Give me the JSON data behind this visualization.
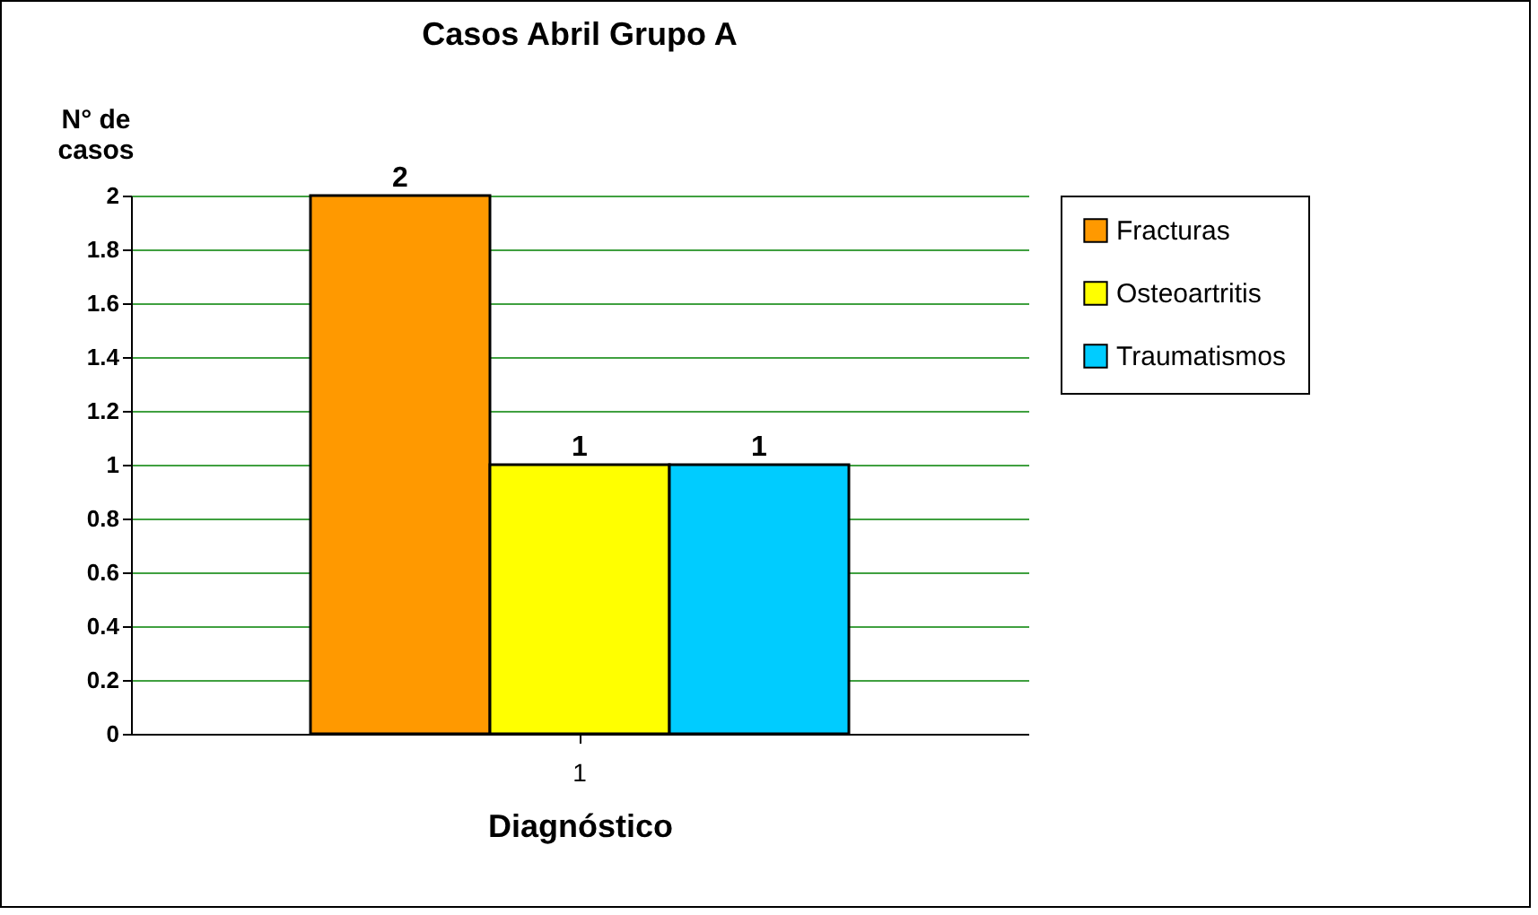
{
  "chart_data": {
    "type": "bar",
    "title": "Casos Abril Grupo A",
    "xlabel": "Diagnóstico",
    "ylabel": "N° de casos",
    "categories": [
      "1"
    ],
    "series": [
      {
        "name": "Fracturas",
        "color": "#ff9900",
        "values": [
          2
        ]
      },
      {
        "name": "Osteoartritis",
        "color": "#ffff00",
        "values": [
          1
        ]
      },
      {
        "name": "Traumatismos",
        "color": "#00ccff",
        "values": [
          1
        ]
      }
    ],
    "ylim": [
      0,
      2
    ],
    "yticks": [
      0,
      0.2,
      0.4,
      0.6,
      0.8,
      1,
      1.2,
      1.4,
      1.6,
      1.8,
      2
    ],
    "grid": "y",
    "legend": "right",
    "data_labels": true
  }
}
